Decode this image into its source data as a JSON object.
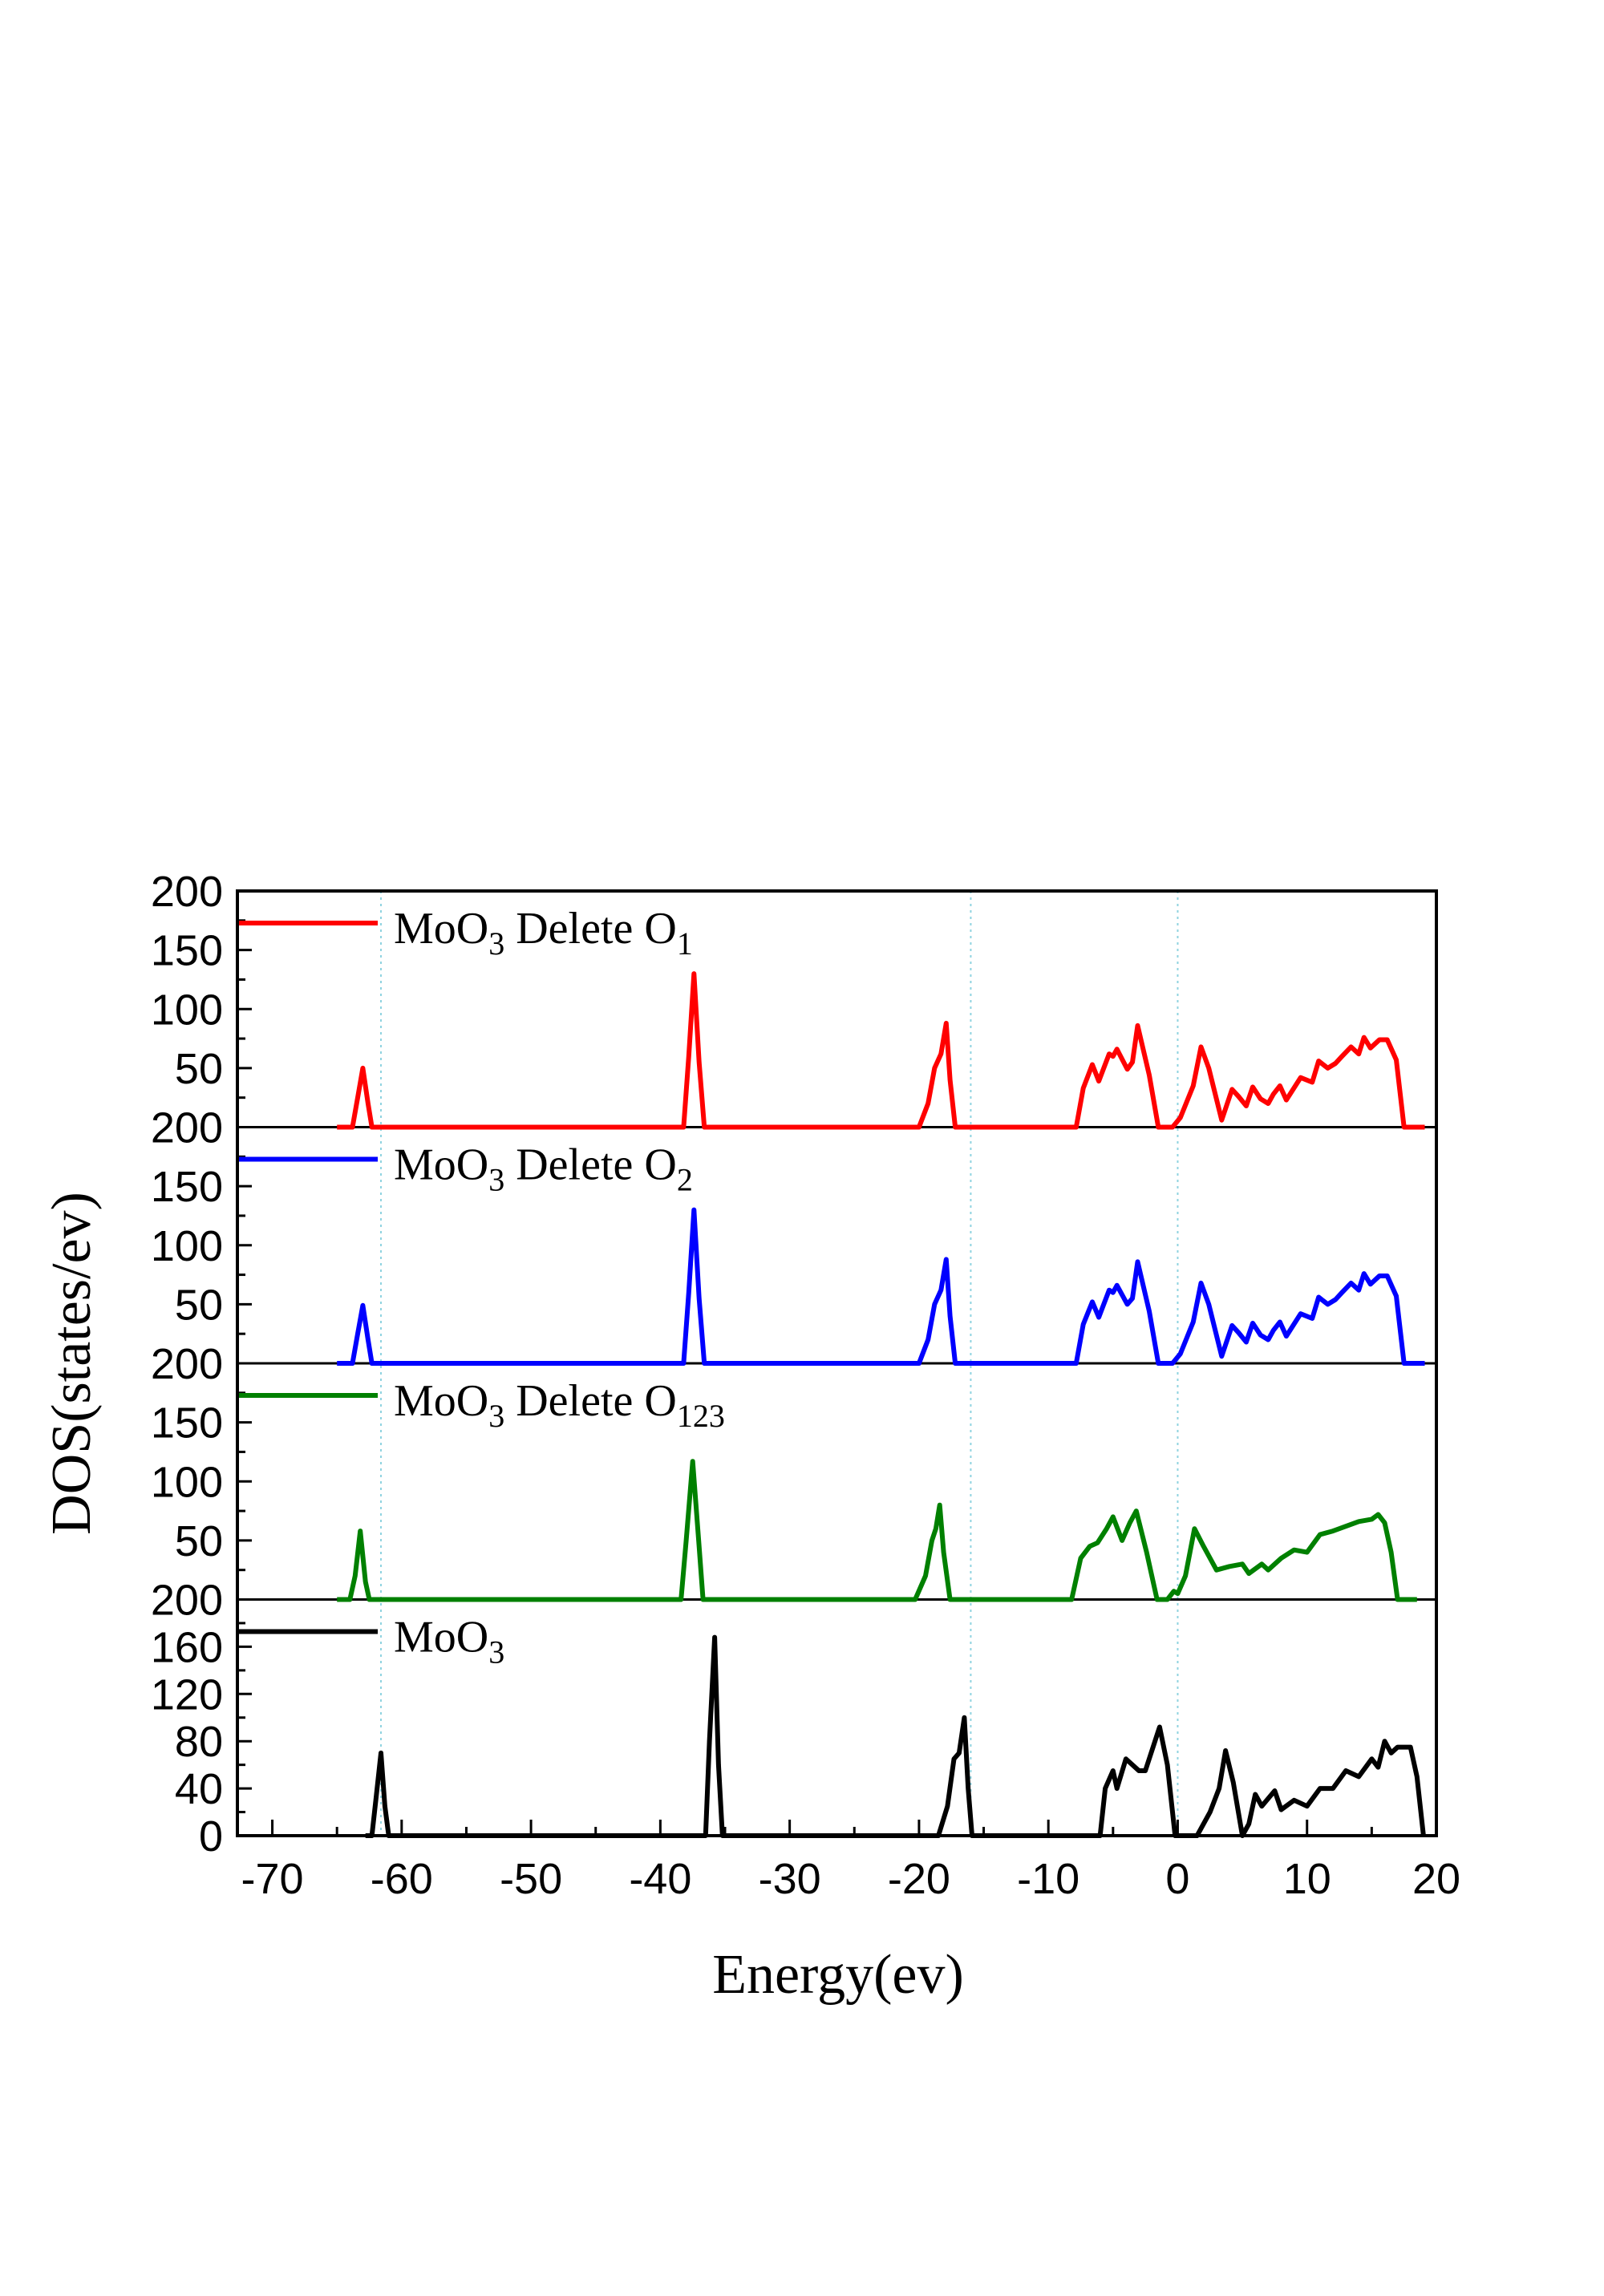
{
  "chart_data": {
    "type": "line",
    "layout": "stacked panels sharing x axis",
    "xlabel": "Energy(ev)",
    "ylabel": "DOS(states/ev)",
    "xlim": [
      -72.7,
      20
    ],
    "xticks": [
      -70,
      -60,
      -50,
      -40,
      -30,
      -20,
      -10,
      0,
      10,
      20
    ],
    "xtick_labels": [
      "-70",
      "-60",
      "-50",
      "-40",
      "-30",
      "-20",
      "-10",
      "0",
      "10",
      "20"
    ],
    "reference_lines_x": [
      -61.6,
      -16,
      0
    ],
    "grid": false,
    "legend_placement": "top-left of each panel",
    "panels": [
      {
        "ylim": [
          0,
          200
        ],
        "yticks": [
          50,
          100,
          150,
          200
        ],
        "ytick_labels": [
          "50",
          "100",
          "150",
          "200"
        ],
        "series": {
          "legend_main": "MoO",
          "legend_sub1": "3",
          "legend_mid": " Delete O",
          "legend_sub2": "1",
          "color": "#ff0000",
          "x": [
            -65,
            -63.8,
            -63.4,
            -63,
            -62.6,
            -62.3,
            -38.2,
            -37.8,
            -37.4,
            -37,
            -36.6,
            -20,
            -19.3,
            -18.8,
            -18.3,
            -17.9,
            -17.6,
            -17.2,
            -7.85,
            -7.3,
            -6.6,
            -6.1,
            -5.3,
            -5.0,
            -4.7,
            -3.9,
            -3.5,
            -3.1,
            -2.2,
            -1.5,
            -0.4,
            0.2,
            1.2,
            1.8,
            2.4,
            3.4,
            4.2,
            4.7,
            5.3,
            5.8,
            6.4,
            7.0,
            7.4,
            7.9,
            8.4,
            9.5,
            10.4,
            10.9,
            11.6,
            12.2,
            12.7,
            13.4,
            14.0,
            14.4,
            14.9,
            15.6,
            16.2,
            16.9,
            17.5,
            19.1
          ],
          "y": [
            0,
            0,
            25,
            50,
            20,
            0,
            0,
            60,
            130,
            55,
            0,
            0,
            20,
            50,
            62,
            88,
            40,
            0,
            0,
            33,
            53,
            39,
            62,
            60,
            66,
            49,
            55,
            86,
            44,
            0,
            0,
            8,
            35,
            68,
            50,
            6,
            32,
            26,
            18,
            34,
            24,
            20,
            28,
            35,
            23,
            42,
            38,
            56,
            50,
            54,
            60,
            68,
            62,
            76,
            67,
            74,
            74,
            57,
            0,
            0
          ]
        }
      },
      {
        "ylim": [
          0,
          200
        ],
        "yticks": [
          50,
          100,
          150,
          200
        ],
        "ytick_labels": [
          "50",
          "100",
          "150",
          "200"
        ],
        "series": {
          "legend_main": "MoO",
          "legend_sub1": "3",
          "legend_mid": " Delete O",
          "legend_sub2": "2",
          "color": "#0000ff",
          "x": [
            -65,
            -63.8,
            -63.4,
            -63,
            -62.6,
            -62.3,
            -38.2,
            -37.8,
            -37.4,
            -37,
            -36.6,
            -20,
            -19.3,
            -18.8,
            -18.3,
            -17.9,
            -17.6,
            -17.2,
            -7.85,
            -7.3,
            -6.6,
            -6.1,
            -5.3,
            -5.0,
            -4.7,
            -3.9,
            -3.5,
            -3.1,
            -2.2,
            -1.5,
            -0.4,
            0.2,
            1.2,
            1.8,
            2.4,
            3.4,
            4.2,
            4.7,
            5.3,
            5.8,
            6.4,
            7.0,
            7.4,
            7.9,
            8.4,
            9.5,
            10.4,
            10.9,
            11.6,
            12.2,
            12.7,
            13.4,
            14.0,
            14.4,
            14.9,
            15.6,
            16.2,
            16.9,
            17.5,
            19.1
          ],
          "y": [
            0,
            0,
            25,
            49,
            20,
            0,
            0,
            60,
            130,
            55,
            0,
            0,
            20,
            50,
            62,
            88,
            40,
            0,
            0,
            33,
            52,
            39,
            62,
            60,
            66,
            50,
            55,
            86,
            44,
            0,
            0,
            8,
            35,
            68,
            50,
            6,
            32,
            26,
            18,
            34,
            24,
            20,
            28,
            35,
            23,
            42,
            38,
            56,
            50,
            54,
            60,
            68,
            62,
            76,
            67,
            74,
            74,
            57,
            0,
            0
          ]
        }
      },
      {
        "ylim": [
          0,
          200
        ],
        "yticks": [
          50,
          100,
          150,
          200
        ],
        "ytick_labels": [
          "50",
          "100",
          "150",
          "200"
        ],
        "series": {
          "legend_main": "MoO",
          "legend_sub1": "3",
          "legend_mid": " Delete O",
          "legend_sub2": "123",
          "color": "#008000",
          "x": [
            -65,
            -64,
            -63.6,
            -63.2,
            -62.8,
            -62.5,
            -38.4,
            -38,
            -37.5,
            -37,
            -36.7,
            -20.3,
            -19.5,
            -19,
            -18.7,
            -18.4,
            -18.1,
            -17.6,
            -8.2,
            -7.5,
            -6.8,
            -6.2,
            -5.5,
            -5,
            -4.3,
            -3.7,
            -3.2,
            -2.4,
            -1.6,
            -0.8,
            -0.3,
            0,
            0.6,
            1.3,
            2,
            3,
            4,
            5,
            5.5,
            6.5,
            7,
            8,
            9,
            10,
            11,
            12,
            13,
            14,
            15,
            15.5,
            16,
            16.5,
            17,
            18.5
          ],
          "y": [
            0,
            0,
            20,
            58,
            15,
            0,
            0,
            50,
            117,
            45,
            0,
            0,
            20,
            50,
            60,
            80,
            40,
            0,
            0,
            35,
            45,
            48,
            60,
            70,
            50,
            65,
            75,
            40,
            0,
            0,
            7,
            5,
            20,
            60,
            45,
            25,
            28,
            30,
            22,
            30,
            25,
            35,
            42,
            40,
            55,
            58,
            62,
            66,
            68,
            72,
            65,
            40,
            0,
            0
          ]
        }
      },
      {
        "ylim": [
          0,
          200
        ],
        "yticks": [
          0,
          40,
          80,
          120,
          160,
          200
        ],
        "ytick_labels": [
          "0",
          "40",
          "80",
          "120",
          "160",
          "200"
        ],
        "series": {
          "legend_main": "MoO",
          "legend_sub1": "3",
          "legend_mid": "",
          "legend_sub2": "",
          "color": "#000000",
          "x": [
            -62.8,
            -62.3,
            -62,
            -61.6,
            -61.3,
            -61,
            -36.5,
            -36.2,
            -35.8,
            -35.5,
            -35.2,
            -18.5,
            -17.8,
            -17.3,
            -16.9,
            -16.5,
            -16.2,
            -15.9,
            -6,
            -5.6,
            -5,
            -4.7,
            -4,
            -3,
            -2.5,
            -1.4,
            -0.8,
            -0.2,
            1.5,
            2.5,
            3.2,
            3.7,
            4.3,
            5,
            5.5,
            6,
            6.5,
            7.5,
            8,
            9,
            10,
            11,
            12,
            13,
            14,
            15,
            15.5,
            16,
            16.5,
            17,
            18,
            18.5,
            19
          ],
          "y": [
            0,
            0,
            30,
            70,
            25,
            0,
            0,
            80,
            168,
            60,
            0,
            0,
            25,
            65,
            70,
            100,
            40,
            0,
            0,
            40,
            55,
            40,
            65,
            55,
            55,
            92,
            60,
            0,
            0,
            20,
            40,
            72,
            45,
            0,
            10,
            35,
            25,
            38,
            22,
            30,
            25,
            40,
            40,
            55,
            50,
            65,
            58,
            80,
            70,
            75,
            75,
            50,
            0
          ]
        }
      }
    ]
  }
}
